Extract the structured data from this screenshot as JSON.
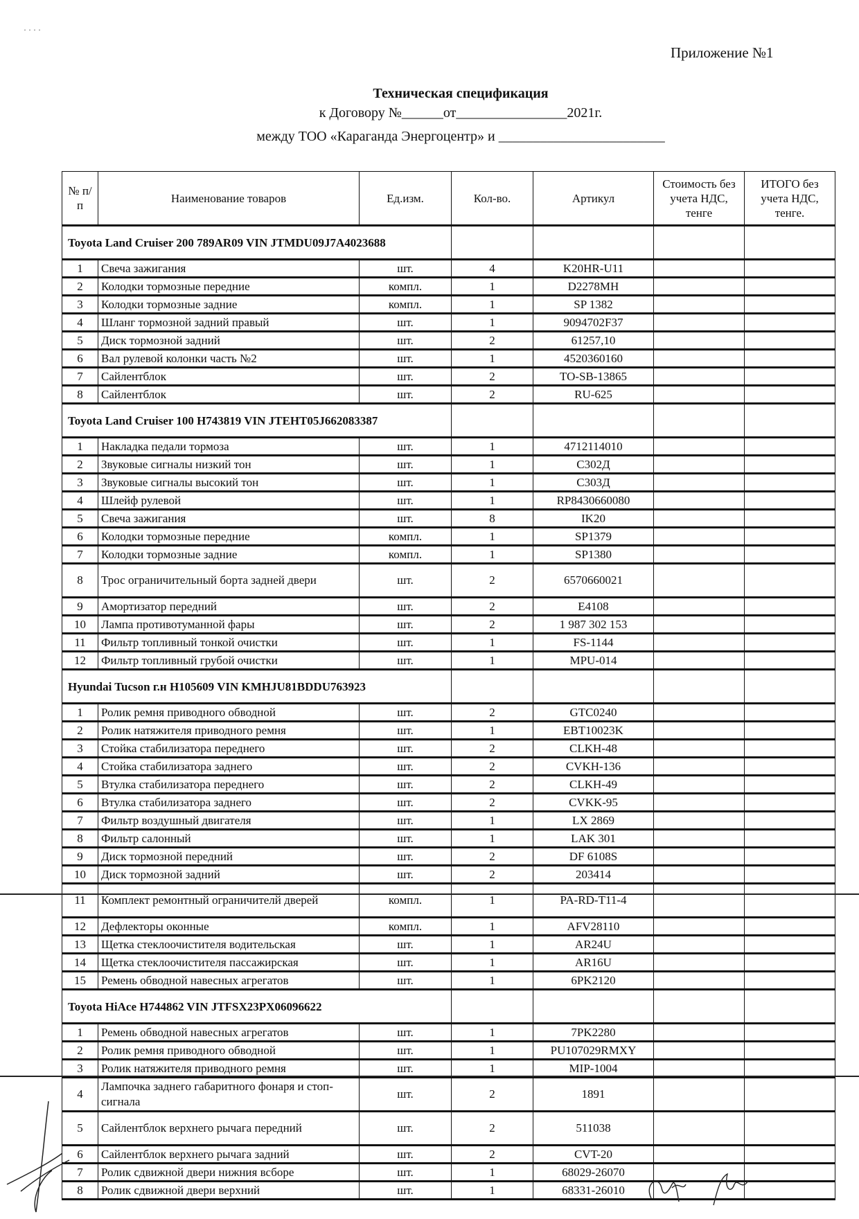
{
  "header": {
    "appendix": "Приложение №1",
    "title": "Техническая спецификация",
    "contract_line": "к Договору №______от________________2021г.",
    "between_line": "между  ТОО «Караганда Энергоцентр» и ________________________"
  },
  "table": {
    "columns": [
      "№ п/п",
      "Наименование товаров",
      "Ед.изм.",
      "Кол-во.",
      "Артикул",
      "Стоимость без учета НДС, тенге",
      "ИТОГО без учета НДС, тенге."
    ],
    "groups": [
      {
        "title": "Toyota Land Cruiser 200 789AR09 VIN JTMDU09J7A4023688",
        "items": [
          [
            "1",
            "Свеча зажигания",
            "шт.",
            "4",
            "K20HR-U11"
          ],
          [
            "2",
            "Колодки тормозные передние",
            "компл.",
            "1",
            "D2278MH"
          ],
          [
            "3",
            "Колодки тормозные задние",
            "компл.",
            "1",
            "SP 1382"
          ],
          [
            "4",
            "Шланг тормозной задний правый",
            "шт.",
            "1",
            "9094702F37"
          ],
          [
            "5",
            "Диск тормозной задний",
            "шт.",
            "2",
            "61257,10"
          ],
          [
            "6",
            "Вал рулевой колонки часть №2",
            "шт.",
            "1",
            "4520360160"
          ],
          [
            "7",
            "Сайлентблок",
            "шт.",
            "2",
            "TO-SB-13865"
          ],
          [
            "8",
            "Сайлентблок",
            "шт.",
            "2",
            "RU-625"
          ]
        ]
      },
      {
        "title": "Toyota Land Cruiser 100 H743819 VIN JTEHT05J662083387",
        "items": [
          [
            "1",
            "Накладка педали тормоза",
            "шт.",
            "1",
            "4712114010"
          ],
          [
            "2",
            "Звуковые сигналы низкий тон",
            "шт.",
            "1",
            "C302Д"
          ],
          [
            "3",
            "Звуковые сигналы высокий тон",
            "шт.",
            "1",
            "C303Д"
          ],
          [
            "4",
            "Шлейф рулевой",
            "шт.",
            "1",
            "RP8430660080"
          ],
          [
            "5",
            "Свеча зажигания",
            "шт.",
            "8",
            "IK20"
          ],
          [
            "6",
            "Колодки тормозные передние",
            "компл.",
            "1",
            "SP1379"
          ],
          [
            "7",
            "Колодки тормозные задние",
            "компл.",
            "1",
            "SP1380"
          ],
          [
            "8",
            "Трос ограничительный борта задней двери",
            "шт.",
            "2",
            "6570660021"
          ],
          [
            "9",
            "Амортизатор передний",
            "шт.",
            "2",
            "E4108"
          ],
          [
            "10",
            "Лампа противотуманной фары",
            "шт.",
            "2",
            "1 987 302 153"
          ],
          [
            "11",
            "Фильтр топливный тонкой очистки",
            "шт.",
            "1",
            "FS-1144"
          ],
          [
            "12",
            "Фильтр топливный грубой очистки",
            "шт.",
            "1",
            "MPU-014"
          ]
        ]
      },
      {
        "title": "Hyundai Tucson г.н H105609 VIN KMHJU81BDDU763923",
        "items": [
          [
            "1",
            "Ролик ремня приводного обводной",
            "шт.",
            "2",
            "GTC0240"
          ],
          [
            "2",
            "Ролик натяжителя приводного ремня",
            "шт.",
            "1",
            "EBT10023K"
          ],
          [
            "3",
            "Стойка стабилизатора переднего",
            "шт.",
            "2",
            "CLKH-48"
          ],
          [
            "4",
            "Стойка стабилизатора заднего",
            "шт.",
            "2",
            "CVKH-136"
          ],
          [
            "5",
            "Втулка стабилизатора переднего",
            "шт.",
            "2",
            "CLKH-49"
          ],
          [
            "6",
            "Втулка стабилизатора заднего",
            "шт.",
            "2",
            "CVKK-95"
          ],
          [
            "7",
            "Фильтр воздушный двигателя",
            "шт.",
            "1",
            "LX 2869"
          ],
          [
            "8",
            "Фильтр салонный",
            "шт.",
            "1",
            "LAK 301"
          ],
          [
            "9",
            "Диск тормозной передний",
            "шт.",
            "2",
            "DF 6108S"
          ],
          [
            "10",
            "Диск тормозной задний",
            "шт.",
            "2",
            "203414"
          ],
          [
            "11",
            "Комплект ремонтный ограничителй дверей",
            "компл.",
            "1",
            "PA-RD-T11-4"
          ],
          [
            "12",
            "Дефлекторы оконные",
            "компл.",
            "1",
            "AFV28110"
          ],
          [
            "13",
            "Щетка стеклоочистителя водительская",
            "шт.",
            "1",
            "AR24U"
          ],
          [
            "14",
            "Щетка стеклоочистителя пассажирская",
            "шт.",
            "1",
            "AR16U"
          ],
          [
            "15",
            "Ремень обводной навесных агрегатов",
            "шт.",
            "1",
            "6PK2120"
          ]
        ]
      },
      {
        "title": "Toyota HiAce H744862 VIN JTFSX23PX06096622",
        "items": [
          [
            "1",
            "Ремень обводной навесных агрегатов",
            "шт.",
            "1",
            "7PK2280"
          ],
          [
            "2",
            "Ролик ремня приводного обводной",
            "шт.",
            "1",
            "PU107029RMXY"
          ],
          [
            "3",
            "Ролик натяжителя приводного ремня",
            "шт.",
            "1",
            "MIP-1004"
          ],
          [
            "4",
            "Лампочка заднего габаритного фонаря и стоп-сигнала",
            "шт.",
            "2",
            "1891"
          ],
          [
            "5",
            "Сайлентблок верхнего рычага передний",
            "шт.",
            "2",
            "511038"
          ],
          [
            "6",
            "Сайлентблок верхнего рычага задний",
            "шт.",
            "2",
            "CVT-20"
          ],
          [
            "7",
            "Ролик сдвижной двери нижния всборе",
            "шт.",
            "1",
            "68029-26070"
          ],
          [
            "8",
            "Ролик сдвижной двери верхний",
            "шт.",
            "1",
            "68331-26010"
          ]
        ]
      }
    ]
  }
}
